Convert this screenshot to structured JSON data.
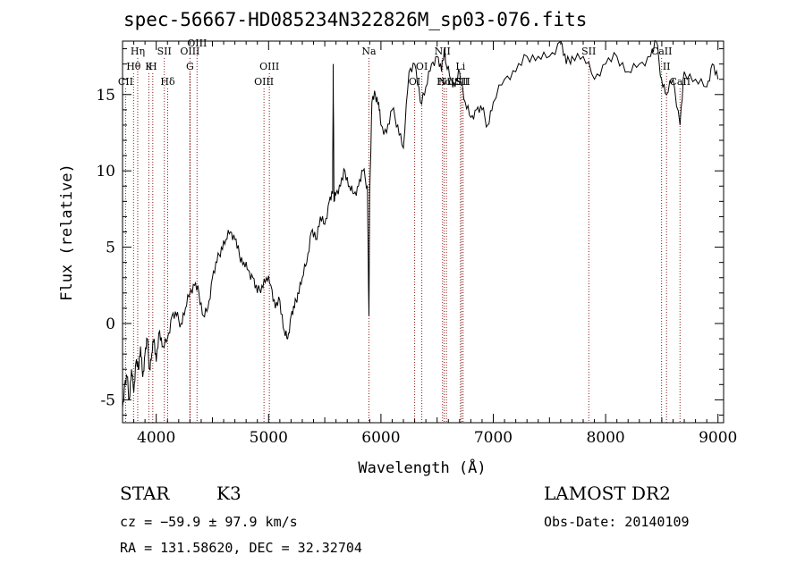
{
  "chart_data": {
    "type": "line",
    "title": "spec-56667-HD085234N322826M_sp03-076.fits",
    "xlabel": "Wavelength (Å)",
    "ylabel": "Flux (relative)",
    "xlim": [
      3700,
      9050
    ],
    "ylim": [
      -6.5,
      18.5
    ],
    "x_ticks": [
      4000,
      5000,
      6000,
      7000,
      8000,
      9000
    ],
    "y_ticks": [
      -5,
      0,
      5,
      10,
      15
    ],
    "grid": false,
    "series": [
      {
        "x": [
          3700,
          3720,
          3740,
          3760,
          3780,
          3800,
          3820,
          3840,
          3860,
          3880,
          3900,
          3920,
          3940,
          3960,
          3980,
          4000,
          4030,
          4060,
          4100,
          4140,
          4180,
          4220,
          4260,
          4300,
          4340,
          4380,
          4420,
          4460,
          4500,
          4540,
          4580,
          4620,
          4660,
          4700,
          4740,
          4780,
          4820,
          4860,
          4900,
          4940,
          4980,
          5020,
          5060,
          5100,
          5140,
          5170,
          5200,
          5230,
          5260,
          5300,
          5340,
          5380,
          5420,
          5460,
          5500,
          5540,
          5570,
          5575,
          5582,
          5600,
          5640,
          5680,
          5720,
          5760,
          5800,
          5840,
          5880,
          5893,
          5900,
          5920,
          5950,
          5980,
          6000,
          6050,
          6100,
          6150,
          6200,
          6250,
          6300,
          6350,
          6400,
          6450,
          6500,
          6540,
          6563,
          6580,
          6620,
          6660,
          6700,
          6750,
          6800,
          6850,
          6900,
          6950,
          7000,
          7100,
          7200,
          7300,
          7400,
          7500,
          7600,
          7650,
          7700,
          7800,
          7900,
          8000,
          8100,
          8200,
          8300,
          8400,
          8450,
          8498,
          8542,
          8600,
          8662,
          8700,
          8800,
          8900,
          8950,
          9000
        ],
        "y": [
          -5.5,
          -4,
          -3.5,
          -5,
          -3,
          -4.5,
          -2.5,
          -3,
          -1.5,
          -3.5,
          -2,
          -1,
          -3,
          -2,
          -1,
          -2.5,
          -0.5,
          -1.5,
          -1,
          0.5,
          0.5,
          0,
          1,
          2,
          2.5,
          2,
          0.5,
          1,
          3,
          4,
          5,
          5.5,
          6,
          5.5,
          4.5,
          4,
          3.5,
          3,
          2,
          2.5,
          3,
          2.5,
          1,
          1.5,
          -0.5,
          -1,
          0.5,
          1,
          2,
          3,
          4,
          6,
          5.5,
          7,
          6.5,
          8,
          8.5,
          17,
          8,
          8.5,
          9,
          10,
          9,
          8.5,
          9,
          10,
          9,
          0.5,
          8.5,
          14.5,
          15,
          14.5,
          13,
          12.5,
          14,
          13,
          11.5,
          16.5,
          17,
          14.5,
          15.5,
          17,
          17.5,
          16.5,
          18,
          17,
          16,
          15.5,
          16.5,
          14.5,
          13.5,
          14,
          14,
          13,
          14.5,
          16,
          16.5,
          17.5,
          17.5,
          17.5,
          18.5,
          17,
          17.5,
          17.5,
          16,
          17,
          17.5,
          16.5,
          17,
          17.5,
          18.5,
          16,
          15,
          16,
          13,
          16.5,
          16,
          15.5,
          17,
          16
        ]
      }
    ],
    "lines": [
      {
        "label": "CII",
        "x": 3727,
        "row": 3
      },
      {
        "label": "Hθ",
        "x": 3798,
        "row": 2
      },
      {
        "label": "Hη",
        "x": 3835,
        "row": 1
      },
      {
        "label": "K",
        "x": 3934,
        "row": 2
      },
      {
        "label": "H",
        "x": 3969,
        "row": 2
      },
      {
        "label": "SII",
        "x": 4072,
        "row": 1
      },
      {
        "label": "Hδ",
        "x": 4102,
        "row": 3
      },
      {
        "label": "OIII",
        "x": 4300,
        "row": 1
      },
      {
        "label": "G",
        "x": 4300,
        "row": 2
      },
      {
        "label": "OIII",
        "x": 4363,
        "row": 0
      },
      {
        "label": "OIII",
        "x": 4959,
        "row": 3
      },
      {
        "label": "OIII",
        "x": 5007,
        "row": 2
      },
      {
        "label": "Na",
        "x": 5893,
        "row": 1
      },
      {
        "label": "OI",
        "x": 6300,
        "row": 3
      },
      {
        "label": "OI",
        "x": 6364,
        "row": 2
      },
      {
        "label": "NII",
        "x": 6548,
        "row": 1
      },
      {
        "label": "Hα",
        "x": 6563,
        "row": 3
      },
      {
        "label": "NII",
        "x": 6583,
        "row": 3
      },
      {
        "label": "Li",
        "x": 6708,
        "row": 2
      },
      {
        "label": "SII",
        "x": 6716,
        "row": 3
      },
      {
        "label": "SII",
        "x": 6731,
        "row": 3
      },
      {
        "label": "SII",
        "x": 7850,
        "row": 1
      },
      {
        "label": "CaII",
        "x": 8498,
        "row": 1
      },
      {
        "label": "II",
        "x": 8542,
        "row": 2
      },
      {
        "label": "CaII",
        "x": 8662,
        "row": 3
      }
    ]
  },
  "info": {
    "class": "STAR",
    "subclass": "K3",
    "cz": "cz = −59.9 ± 97.9 km/s",
    "radec": "RA = 131.58620, DEC =  32.32704",
    "survey": "LAMOST DR2",
    "obs_date": "Obs-Date: 20140109"
  },
  "colors": {
    "spectrum": "#000000",
    "line_markers": "#8b1a1a",
    "axes": "#000000"
  }
}
